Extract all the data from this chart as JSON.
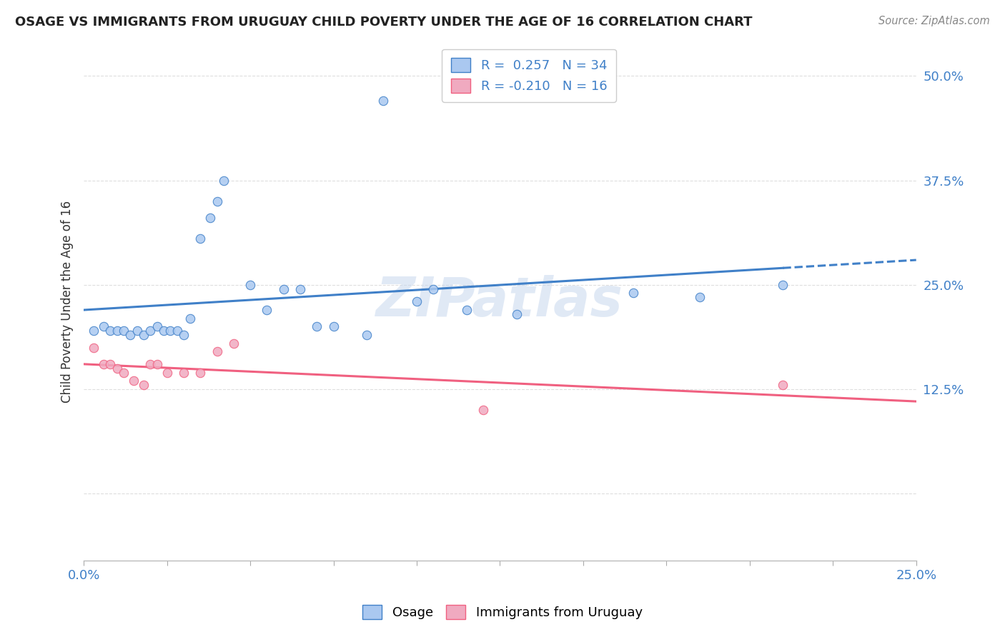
{
  "title": "OSAGE VS IMMIGRANTS FROM URUGUAY CHILD POVERTY UNDER THE AGE OF 16 CORRELATION CHART",
  "source": "Source: ZipAtlas.com",
  "ylabel": "Child Poverty Under the Age of 16",
  "xlim": [
    0.0,
    0.25
  ],
  "ylim": [
    -0.08,
    0.54
  ],
  "xticks": [
    0.0,
    0.025,
    0.05,
    0.075,
    0.1,
    0.125,
    0.15,
    0.175,
    0.2,
    0.225,
    0.25
  ],
  "ytick_positions": [
    0.0,
    0.125,
    0.25,
    0.375,
    0.5
  ],
  "ytick_labels": [
    "",
    "12.5%",
    "25.0%",
    "37.5%",
    "50.0%"
  ],
  "osage_R": 0.257,
  "osage_N": 34,
  "uruguay_R": -0.21,
  "uruguay_N": 16,
  "osage_color": "#aac8f0",
  "uruguay_color": "#f0aac0",
  "osage_line_color": "#4080c8",
  "uruguay_line_color": "#f06080",
  "watermark": "ZIPatlas",
  "osage_x": [
    0.003,
    0.006,
    0.008,
    0.01,
    0.012,
    0.014,
    0.016,
    0.018,
    0.02,
    0.022,
    0.024,
    0.026,
    0.028,
    0.03,
    0.032,
    0.035,
    0.038,
    0.04,
    0.042,
    0.05,
    0.055,
    0.06,
    0.065,
    0.07,
    0.075,
    0.085,
    0.09,
    0.1,
    0.105,
    0.115,
    0.13,
    0.165,
    0.185,
    0.21
  ],
  "osage_y": [
    0.195,
    0.2,
    0.195,
    0.195,
    0.195,
    0.19,
    0.195,
    0.19,
    0.195,
    0.2,
    0.195,
    0.195,
    0.195,
    0.19,
    0.21,
    0.305,
    0.33,
    0.35,
    0.375,
    0.25,
    0.22,
    0.245,
    0.245,
    0.2,
    0.2,
    0.19,
    0.47,
    0.23,
    0.245,
    0.22,
    0.215,
    0.24,
    0.235,
    0.25
  ],
  "uruguay_x": [
    0.003,
    0.006,
    0.008,
    0.01,
    0.012,
    0.015,
    0.018,
    0.02,
    0.022,
    0.025,
    0.03,
    0.035,
    0.04,
    0.045,
    0.12,
    0.21
  ],
  "uruguay_y": [
    0.175,
    0.155,
    0.155,
    0.15,
    0.145,
    0.135,
    0.13,
    0.155,
    0.155,
    0.145,
    0.145,
    0.145,
    0.17,
    0.18,
    0.1,
    0.13
  ],
  "background_color": "#ffffff",
  "grid_color": "#dedede"
}
